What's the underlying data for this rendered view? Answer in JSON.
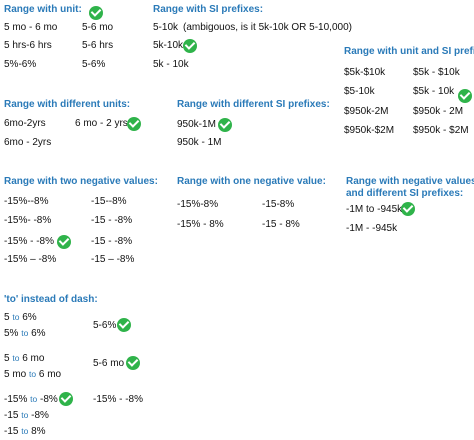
{
  "sections": {
    "unit": {
      "title": "Range with unit:",
      "a1": "5 mo - 6 mo",
      "b1": "5-6 mo",
      "a2": "5 hrs-6 hrs",
      "b2": "5-6 hrs",
      "a3": "5%-6%",
      "b3": "5-6%"
    },
    "si": {
      "title": "Range with SI prefixes:",
      "a1": "5-10k",
      "a1_note": "(ambigouos, is it 5k-10k OR 5-10,000)",
      "a2": "5k-10k",
      "a3": "5k - 10k"
    },
    "unit_si": {
      "title": "Range with unit and SI prefix",
      "a1": "$5k-$10k",
      "b1": "$5k - $10k",
      "a2": "$5-10k",
      "b2": "$5k - 10k",
      "a3": "$950k-2M",
      "b3": "$950k - 2M",
      "a4": "$950k-$2M",
      "b4": "$950k - $2M"
    },
    "diff_units": {
      "title": "Range with different units:",
      "a1": "6mo-2yrs",
      "b1": "6 mo - 2 yrs",
      "a2": "6mo - 2yrs"
    },
    "diff_si": {
      "title": "Range with different SI prefixes:",
      "a1": "950k-1M",
      "a2": "950k - 1M"
    },
    "two_neg": {
      "title": "Range with two negative values:",
      "a1": "-15%--8%",
      "b1": "-15--8%",
      "a2": "-15%- -8%",
      "b2": "-15 - -8%",
      "a3": "-15% - -8%",
      "b3": "-15 - -8%",
      "a4": "-15% – -8%",
      "b4": "-15 – -8%"
    },
    "one_neg": {
      "title": "Range with one negative value:",
      "a1": "-15%-8%",
      "b1": "-15-8%",
      "a2": "-15% - 8%",
      "b2": "-15 - 8%"
    },
    "neg_diff_si": {
      "title_line1": "Range with negative values",
      "title_line2": "and different SI prefixes:",
      "a1": "-1M to -945k",
      "a2": "-1M - -945k"
    },
    "to_dash": {
      "title": "'to' instead of dash:",
      "g1_line1_a": "5",
      "g1_line1_to": "to",
      "g1_line1_b": "6%",
      "g1_line2_a": "5%",
      "g1_line2_to": "to",
      "g1_line2_b": "6%",
      "g1_right": "5-6%",
      "g2_line1_a": "5",
      "g2_line1_to": "to",
      "g2_line1_b": "6 mo",
      "g2_line2_a": "5 mo",
      "g2_line2_to": "to",
      "g2_line2_b": "6 mo",
      "g2_right": "5-6 mo",
      "g3_line1_a": "-15%",
      "g3_line1_to": "to",
      "g3_line1_b": "-8%",
      "g3_right": "-15% - -8%",
      "g3_line2_a": "-15",
      "g3_line2_to": "to",
      "g3_line2_b": "-8%",
      "g3_line3_a": "-15",
      "g3_line3_to": "to",
      "g3_line3_b": "8%"
    }
  },
  "colors": {
    "heading": "#2a7ab8",
    "check": "#2fb34a",
    "text": "#111111"
  },
  "icons": {
    "check": "check-circle-icon"
  }
}
